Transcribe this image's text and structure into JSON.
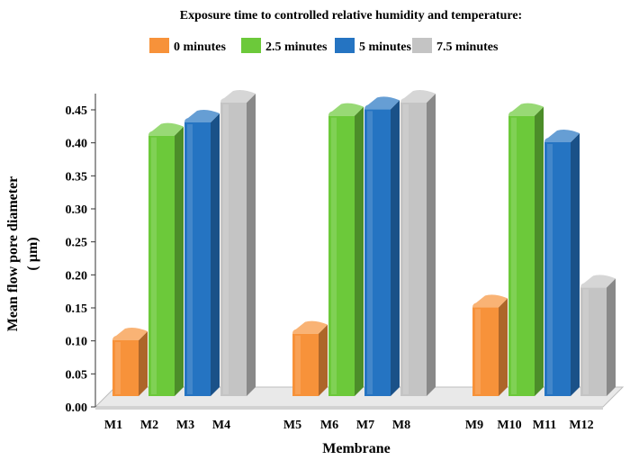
{
  "chart_data": {
    "type": "bar",
    "legend_title": "Exposure time to controlled relative humidity and temperature:",
    "legend_position": "top",
    "xlabel": "Membrane",
    "ylabel_line1": "Mean flow pore diameter",
    "ylabel_line2": "( µm)",
    "ylim": [
      0,
      0.45
    ],
    "yticks": [
      "0.00",
      "0.05",
      "0.10",
      "0.15",
      "0.20",
      "0.25",
      "0.30",
      "0.35",
      "0.40",
      "0.45"
    ],
    "grid": false,
    "series": [
      {
        "name": "0 minutes",
        "color": "#f7923a"
      },
      {
        "name": "2.5 minutes",
        "color": "#6cc93a"
      },
      {
        "name": "5 minutes",
        "color": "#2574c2"
      },
      {
        "name": "7.5 minutes",
        "color": "#c4c4c4"
      }
    ],
    "bars": [
      {
        "category": "M1",
        "series": 0,
        "value": 0.09
      },
      {
        "category": "M2",
        "series": 1,
        "value": 0.4
      },
      {
        "category": "M3",
        "series": 2,
        "value": 0.42
      },
      {
        "category": "M4",
        "series": 3,
        "value": 0.45
      },
      {
        "category": "M5",
        "series": 0,
        "value": 0.1
      },
      {
        "category": "M6",
        "series": 1,
        "value": 0.43
      },
      {
        "category": "M7",
        "series": 2,
        "value": 0.44
      },
      {
        "category": "M8",
        "series": 3,
        "value": 0.45
      },
      {
        "category": "M9",
        "series": 0,
        "value": 0.14
      },
      {
        "category": "M10",
        "series": 1,
        "value": 0.43
      },
      {
        "category": "M11",
        "series": 2,
        "value": 0.39
      },
      {
        "category": "M12",
        "series": 3,
        "value": 0.17
      }
    ]
  }
}
